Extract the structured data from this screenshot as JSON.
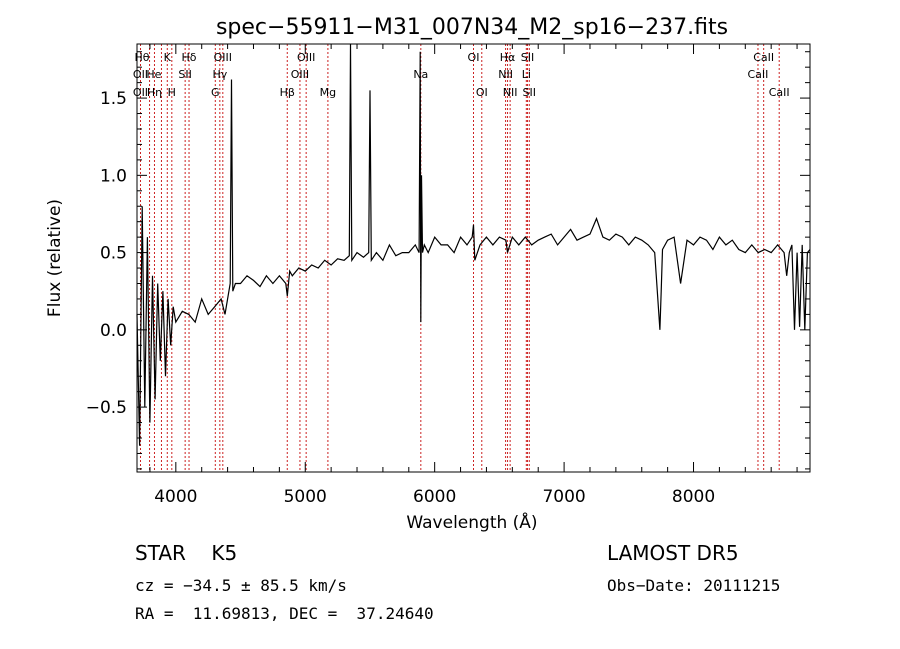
{
  "chart_data": {
    "type": "line",
    "title": "spec−55911−M31_007N34_M2_sp16−237.fits",
    "xlabel": "Wavelength (Å)",
    "ylabel": "Flux (relative)",
    "xlim": [
      3700,
      8900
    ],
    "ylim": [
      -0.92,
      1.85
    ],
    "x_ticks": [
      4000,
      5000,
      6000,
      7000,
      8000
    ],
    "x_tick_labels": [
      "4000",
      "5000",
      "6000",
      "7000",
      "8000"
    ],
    "y_ticks": [
      -0.5,
      0.0,
      0.5,
      1.0,
      1.5
    ],
    "y_tick_labels": [
      "−0.5",
      "0.0",
      "0.5",
      "1.0",
      "1.5"
    ],
    "grid": false,
    "line_color": "#000000",
    "marker_color": "#cc2222",
    "series": [
      {
        "x": [
          3700,
          3720,
          3740,
          3760,
          3780,
          3800,
          3820,
          3840,
          3860,
          3880,
          3900,
          3920,
          3940,
          3960,
          3980,
          4000,
          4050,
          4100,
          4150,
          4200,
          4250,
          4300,
          4350,
          4380,
          4400,
          4420,
          4430,
          4440,
          4460,
          4500,
          4550,
          4600,
          4650,
          4700,
          4750,
          4800,
          4850,
          4861,
          4880,
          4900,
          4950,
          5000,
          5050,
          5100,
          5150,
          5200,
          5250,
          5300,
          5340,
          5350,
          5360,
          5400,
          5450,
          5490,
          5500,
          5510,
          5550,
          5600,
          5650,
          5700,
          5750,
          5800,
          5850,
          5880,
          5888,
          5893,
          5898,
          5906,
          5920,
          5950,
          6000,
          6050,
          6100,
          6150,
          6200,
          6250,
          6290,
          6300,
          6310,
          6350,
          6400,
          6450,
          6500,
          6550,
          6563,
          6600,
          6650,
          6700,
          6750,
          6800,
          6850,
          6900,
          6950,
          7000,
          7050,
          7100,
          7150,
          7200,
          7250,
          7300,
          7350,
          7400,
          7450,
          7500,
          7550,
          7600,
          7650,
          7700,
          7740,
          7750,
          7760,
          7800,
          7850,
          7900,
          7950,
          8000,
          8050,
          8100,
          8150,
          8200,
          8250,
          8300,
          8350,
          8400,
          8450,
          8500,
          8550,
          8600,
          8650,
          8700,
          8720,
          8740,
          8760,
          8780,
          8800,
          8820,
          8840,
          8860,
          8880,
          8900
        ],
        "y": [
          0.1,
          -0.75,
          0.8,
          -0.5,
          0.6,
          -0.6,
          0.35,
          -0.45,
          0.3,
          -0.2,
          0.25,
          -0.3,
          0.2,
          -0.1,
          0.15,
          0.05,
          0.12,
          0.1,
          0.05,
          0.2,
          0.1,
          0.15,
          0.2,
          0.1,
          0.2,
          0.3,
          1.62,
          0.25,
          0.3,
          0.3,
          0.35,
          0.32,
          0.28,
          0.35,
          0.3,
          0.35,
          0.3,
          0.22,
          0.38,
          0.35,
          0.4,
          0.38,
          0.42,
          0.4,
          0.45,
          0.42,
          0.46,
          0.45,
          0.48,
          1.85,
          0.45,
          0.5,
          0.47,
          0.5,
          1.55,
          0.45,
          0.5,
          0.45,
          0.55,
          0.48,
          0.5,
          0.5,
          0.55,
          0.5,
          1.8,
          0.05,
          1.0,
          0.5,
          0.55,
          0.5,
          0.6,
          0.55,
          0.55,
          0.5,
          0.6,
          0.55,
          0.6,
          0.68,
          0.45,
          0.55,
          0.6,
          0.55,
          0.6,
          0.58,
          0.5,
          0.6,
          0.55,
          0.6,
          0.55,
          0.58,
          0.6,
          0.62,
          0.55,
          0.6,
          0.65,
          0.58,
          0.6,
          0.62,
          0.72,
          0.6,
          0.58,
          0.62,
          0.6,
          0.55,
          0.6,
          0.58,
          0.55,
          0.5,
          0.0,
          0.25,
          0.52,
          0.58,
          0.6,
          0.3,
          0.58,
          0.55,
          0.6,
          0.58,
          0.52,
          0.6,
          0.55,
          0.58,
          0.52,
          0.5,
          0.55,
          0.5,
          0.52,
          0.5,
          0.55,
          0.5,
          0.35,
          0.5,
          0.55,
          0.0,
          0.5,
          0.02,
          0.55,
          0.0,
          0.5,
          0.52
        ]
      }
    ],
    "spectral_lines": [
      {
        "label": "Hθ",
        "wavelength": 3797,
        "row": 1,
        "anchor": "end"
      },
      {
        "label": "OII",
        "wavelength": 3727,
        "row": 2,
        "anchor": "middle"
      },
      {
        "label": "OII",
        "wavelength": 3727,
        "row": 3,
        "anchor": "middle"
      },
      {
        "label": "He",
        "wavelength": 3889,
        "row": 2,
        "anchor": "end"
      },
      {
        "label": "Hη",
        "wavelength": 3835,
        "row": 3,
        "anchor": "middle"
      },
      {
        "label": "K",
        "wavelength": 3934,
        "row": 1,
        "anchor": "middle"
      },
      {
        "label": "H",
        "wavelength": 3969,
        "row": 3,
        "anchor": "middle"
      },
      {
        "label": "Hδ",
        "wavelength": 4102,
        "row": 1,
        "anchor": "middle"
      },
      {
        "label": "SII",
        "wavelength": 4072,
        "row": 2,
        "anchor": "middle"
      },
      {
        "label": "OIII",
        "wavelength": 4363,
        "row": 1,
        "anchor": "middle"
      },
      {
        "label": "Hγ",
        "wavelength": 4340,
        "row": 2,
        "anchor": "middle"
      },
      {
        "label": "G",
        "wavelength": 4305,
        "row": 3,
        "anchor": "middle"
      },
      {
        "label": "Hβ",
        "wavelength": 4861,
        "row": 3,
        "anchor": "middle"
      },
      {
        "label": "OIII",
        "wavelength": 5007,
        "row": 1,
        "anchor": "middle"
      },
      {
        "label": "OIII",
        "wavelength": 4959,
        "row": 2,
        "anchor": "middle"
      },
      {
        "label": "Mg",
        "wavelength": 5175,
        "row": 3,
        "anchor": "middle"
      },
      {
        "label": "Na",
        "wavelength": 5893,
        "row": 2,
        "anchor": "middle"
      },
      {
        "label": "OI",
        "wavelength": 6300,
        "row": 1,
        "anchor": "middle"
      },
      {
        "label": "OI",
        "wavelength": 6364,
        "row": 3,
        "anchor": "middle"
      },
      {
        "label": "Hα",
        "wavelength": 6563,
        "row": 1,
        "anchor": "middle"
      },
      {
        "label": "NII",
        "wavelength": 6548,
        "row": 2,
        "anchor": "middle"
      },
      {
        "label": "NII",
        "wavelength": 6583,
        "row": 3,
        "anchor": "middle"
      },
      {
        "label": "SII",
        "wavelength": 6717,
        "row": 1,
        "anchor": "middle"
      },
      {
        "label": "Li",
        "wavelength": 6708,
        "row": 2,
        "anchor": "middle"
      },
      {
        "label": "SII",
        "wavelength": 6731,
        "row": 3,
        "anchor": "middle"
      },
      {
        "label": "CaII",
        "wavelength": 8542,
        "row": 1,
        "anchor": "middle"
      },
      {
        "label": "CaII",
        "wavelength": 8498,
        "row": 2,
        "anchor": "middle"
      },
      {
        "label": "CaII",
        "wavelength": 8662,
        "row": 3,
        "anchor": "middle"
      }
    ]
  },
  "info": {
    "class_line": "STAR    K5",
    "survey": "LAMOST DR5",
    "cz_line": "cz = −34.5 ± 85.5 km/s",
    "obs_date": "Obs−Date: 20111215",
    "coords": "RA =  11.69813, DEC =  37.24640"
  }
}
